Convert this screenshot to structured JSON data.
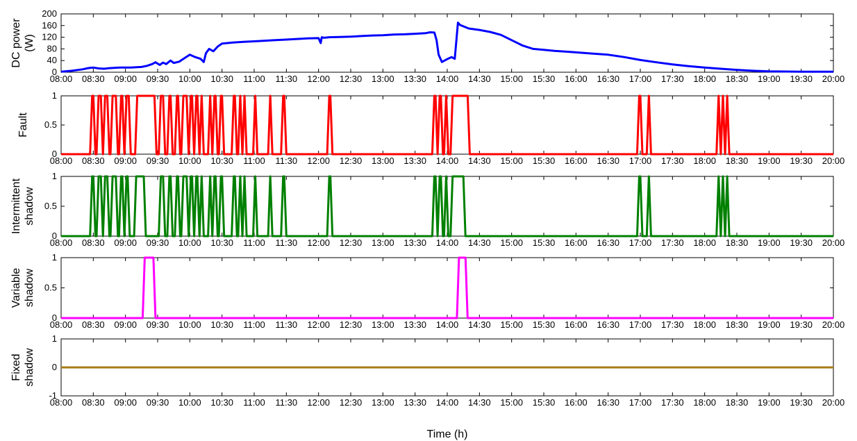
{
  "figure": {
    "xlabel": "Time (h)"
  },
  "chart_data": [
    {
      "type": "line",
      "ylabel": [
        "DC power",
        "(W)"
      ],
      "ylim": [
        0,
        200
      ],
      "yticks": [
        0,
        40,
        80,
        120,
        160,
        200
      ],
      "xlim": [
        "08:00",
        "20:00"
      ],
      "xticks": [
        "08:00",
        "08:30",
        "09:00",
        "09:30",
        "10:00",
        "10:30",
        "11:00",
        "11:30",
        "12:00",
        "12:30",
        "13:00",
        "13:30",
        "14:00",
        "14:30",
        "15:00",
        "15:30",
        "16:00",
        "16:30",
        "17:00",
        "17:30",
        "18:00",
        "18:30",
        "19:00",
        "19:30",
        "20:00"
      ],
      "color": "#0000ff",
      "series": [
        {
          "x": [
            "08:00",
            "08:10",
            "08:20",
            "08:25",
            "08:30",
            "08:35",
            "08:40",
            "08:45",
            "08:55",
            "09:05",
            "09:15",
            "09:20",
            "09:25",
            "09:28",
            "09:32",
            "09:35",
            "09:38",
            "09:42",
            "09:45",
            "09:50",
            "09:55",
            "10:00",
            "10:05",
            "10:10",
            "10:13",
            "10:15",
            "10:18",
            "10:22",
            "10:26",
            "10:30",
            "10:40",
            "10:50",
            "11:00",
            "11:10",
            "11:20",
            "11:30",
            "11:40",
            "11:50",
            "12:00",
            "12:02",
            "12:03",
            "12:05",
            "12:10",
            "12:20",
            "12:30",
            "12:40",
            "12:50",
            "13:00",
            "13:10",
            "13:20",
            "13:30",
            "13:40",
            "13:44",
            "13:48",
            "13:50",
            "13:52",
            "13:55",
            "14:00",
            "14:04",
            "14:07",
            "14:10",
            "14:12",
            "14:20",
            "14:30",
            "14:40",
            "14:50",
            "15:00",
            "15:10",
            "15:20",
            "15:30",
            "15:40",
            "15:50",
            "16:00",
            "16:15",
            "16:30",
            "16:45",
            "17:00",
            "17:15",
            "17:30",
            "17:45",
            "18:00",
            "18:15",
            "18:30",
            "18:45",
            "19:00",
            "19:30",
            "20:00"
          ],
          "y": [
            2,
            5,
            10,
            14,
            16,
            13,
            12,
            14,
            16,
            16,
            18,
            22,
            28,
            34,
            25,
            33,
            28,
            40,
            32,
            36,
            48,
            60,
            52,
            46,
            35,
            65,
            80,
            72,
            88,
            98,
            102,
            104,
            106,
            108,
            110,
            112,
            114,
            116,
            117,
            100,
            120,
            118,
            120,
            121,
            122,
            124,
            126,
            127,
            129,
            130,
            132,
            134,
            137,
            136,
            110,
            60,
            35,
            45,
            52,
            46,
            170,
            162,
            150,
            145,
            138,
            128,
            110,
            92,
            80,
            77,
            73,
            71,
            68,
            64,
            60,
            52,
            42,
            34,
            27,
            21,
            16,
            12,
            8,
            5,
            3,
            2,
            2
          ]
        }
      ]
    },
    {
      "type": "line",
      "ylabel": [
        "Fault"
      ],
      "ylim": [
        0,
        1
      ],
      "yticks": [
        "0",
        "0.5",
        "1"
      ],
      "xlim": [
        "08:00",
        "20:00"
      ],
      "xticks": [
        "08:00",
        "08:30",
        "09:00",
        "09:30",
        "10:00",
        "10:30",
        "11:00",
        "11:30",
        "12:00",
        "12:30",
        "13:00",
        "13:30",
        "14:00",
        "14:30",
        "15:00",
        "15:30",
        "16:00",
        "16:30",
        "17:00",
        "17:30",
        "18:00",
        "18:30",
        "19:00",
        "19:30",
        "20:00"
      ],
      "color": "#ff0000",
      "series": [
        {
          "pulses": [
            [
              "08:28",
              "08:31"
            ],
            [
              "08:34",
              "08:38"
            ],
            [
              "08:40",
              "08:44"
            ],
            [
              "08:47",
              "08:52"
            ],
            [
              "08:55",
              "08:58"
            ],
            [
              "09:00",
              "09:04"
            ],
            [
              "09:10",
              "09:28"
            ],
            [
              "09:32",
              "09:36"
            ],
            [
              "09:40",
              "09:43"
            ],
            [
              "09:47",
              "09:50"
            ],
            [
              "09:53",
              "09:58"
            ],
            [
              "10:00",
              "10:03"
            ],
            [
              "10:05",
              "10:08"
            ],
            [
              "10:10",
              "10:12"
            ],
            [
              "10:18",
              "10:20"
            ],
            [
              "10:22",
              "10:25"
            ],
            [
              "10:28",
              "10:31"
            ],
            [
              "10:40",
              "10:43"
            ],
            [
              "10:46",
              "10:48"
            ],
            [
              "10:50",
              "10:52"
            ],
            [
              "11:00",
              "11:02"
            ],
            [
              "11:14",
              "11:16"
            ],
            [
              "11:26",
              "11:29"
            ],
            [
              "12:09",
              "12:12"
            ],
            [
              "13:47",
              "13:50"
            ],
            [
              "13:52",
              "13:55"
            ],
            [
              "13:58",
              "14:00"
            ],
            [
              "14:04",
              "14:20"
            ],
            [
              "16:58",
              "17:01"
            ],
            [
              "17:07",
              "17:09"
            ],
            [
              "18:12",
              "18:14"
            ],
            [
              "18:16",
              "18:18"
            ],
            [
              "18:20",
              "18:22"
            ]
          ]
        }
      ]
    },
    {
      "type": "line",
      "ylabel": [
        "Intermittent",
        "shadow"
      ],
      "ylim": [
        0,
        1
      ],
      "yticks": [
        "0",
        "0.5",
        "1"
      ],
      "xlim": [
        "08:00",
        "20:00"
      ],
      "xticks": [
        "08:00",
        "08:30",
        "09:00",
        "09:30",
        "10:00",
        "10:30",
        "11:00",
        "11:30",
        "12:00",
        "12:30",
        "13:00",
        "13:30",
        "14:00",
        "14:30",
        "15:00",
        "15:30",
        "16:00",
        "16:30",
        "17:00",
        "17:30",
        "18:00",
        "18:30",
        "19:00",
        "19:30",
        "20:00"
      ],
      "color": "#008000",
      "series": [
        {
          "pulses": [
            [
              "08:28",
              "08:31"
            ],
            [
              "08:34",
              "08:38"
            ],
            [
              "08:40",
              "08:44"
            ],
            [
              "08:47",
              "08:52"
            ],
            [
              "08:55",
              "08:58"
            ],
            [
              "09:00",
              "09:03"
            ],
            [
              "09:09",
              "09:18"
            ],
            [
              "09:32",
              "09:36"
            ],
            [
              "09:40",
              "09:43"
            ],
            [
              "09:47",
              "09:50"
            ],
            [
              "09:53",
              "09:58"
            ],
            [
              "10:00",
              "10:03"
            ],
            [
              "10:05",
              "10:08"
            ],
            [
              "10:10",
              "10:12"
            ],
            [
              "10:18",
              "10:20"
            ],
            [
              "10:22",
              "10:25"
            ],
            [
              "10:28",
              "10:31"
            ],
            [
              "10:40",
              "10:43"
            ],
            [
              "10:46",
              "10:48"
            ],
            [
              "10:50",
              "10:52"
            ],
            [
              "11:00",
              "11:02"
            ],
            [
              "11:14",
              "11:16"
            ],
            [
              "11:26",
              "11:29"
            ],
            [
              "12:09",
              "12:12"
            ],
            [
              "13:47",
              "13:50"
            ],
            [
              "13:52",
              "13:55"
            ],
            [
              "13:58",
              "14:00"
            ],
            [
              "14:04",
              "14:16"
            ],
            [
              "16:58",
              "17:01"
            ],
            [
              "17:07",
              "17:09"
            ],
            [
              "18:12",
              "18:14"
            ],
            [
              "18:16",
              "18:18"
            ],
            [
              "18:20",
              "18:22"
            ]
          ]
        }
      ]
    },
    {
      "type": "line",
      "ylabel": [
        "Variable",
        "shadow"
      ],
      "ylim": [
        0,
        1
      ],
      "yticks": [
        "0",
        "0.5",
        "1"
      ],
      "xlim": [
        "08:00",
        "20:00"
      ],
      "xticks": [
        "08:00",
        "08:30",
        "09:00",
        "09:30",
        "10:00",
        "10:30",
        "11:00",
        "11:30",
        "12:00",
        "12:30",
        "13:00",
        "13:30",
        "14:00",
        "14:30",
        "15:00",
        "15:30",
        "16:00",
        "16:30",
        "17:00",
        "17:30",
        "18:00",
        "18:30",
        "19:00",
        "19:30",
        "20:00"
      ],
      "color": "#ff00ff",
      "series": [
        {
          "pulses": [
            [
              "09:17",
              "09:27"
            ],
            [
              "14:10",
              "14:18"
            ]
          ]
        }
      ]
    },
    {
      "type": "line",
      "ylabel": [
        "Fixed",
        "shadow"
      ],
      "ylim": [
        -1,
        1
      ],
      "yticks": [
        "-1",
        "0",
        "1"
      ],
      "xlim": [
        "08:00",
        "20:00"
      ],
      "xticks": [
        "08:00",
        "08:30",
        "09:00",
        "09:30",
        "10:00",
        "10:30",
        "11:00",
        "11:30",
        "12:00",
        "12:30",
        "13:00",
        "13:30",
        "14:00",
        "14:30",
        "15:00",
        "15:30",
        "16:00",
        "16:30",
        "17:00",
        "17:30",
        "18:00",
        "18:30",
        "19:00",
        "19:30",
        "20:00"
      ],
      "color": "#a87b16",
      "series": [
        {
          "x": [
            "08:00",
            "20:00"
          ],
          "y": [
            0,
            0
          ]
        }
      ]
    }
  ]
}
